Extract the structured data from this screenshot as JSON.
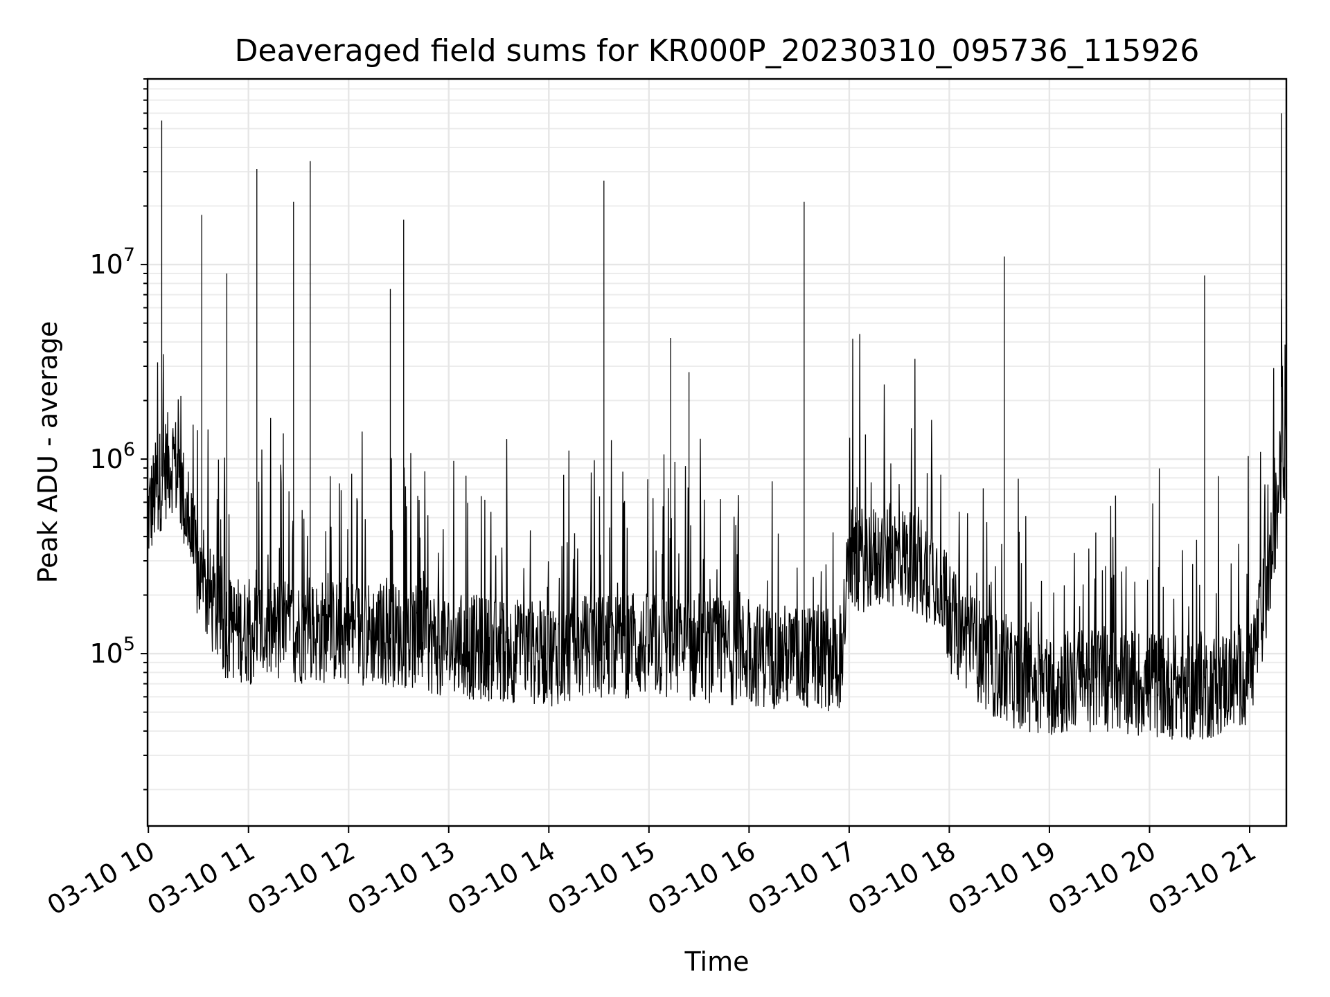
{
  "chart_data": {
    "type": "line",
    "title": "Deaveraged field sums for KR000P_20230310_095736_115926",
    "xlabel": "Time",
    "ylabel": "Peak ADU - average",
    "yscale": "log",
    "ylim": [
      13000,
      90000000
    ],
    "xlim": [
      "2023-03-10 09:59:30",
      "2023-03-10 21:22:00"
    ],
    "grid": "on (major and minor)",
    "x_ticks": [
      "03-10 10",
      "03-10 11",
      "03-10 12",
      "03-10 13",
      "03-10 14",
      "03-10 15",
      "03-10 16",
      "03-10 17",
      "03-10 18",
      "03-10 19",
      "03-10 20",
      "03-10 21"
    ],
    "y_ticks": [
      {
        "value": 100000,
        "base": "10",
        "exp": "5"
      },
      {
        "value": 1000000,
        "base": "10",
        "exp": "6"
      },
      {
        "value": 10000000,
        "base": "10",
        "exp": "7"
      }
    ],
    "series": [
      {
        "color": "#000000",
        "x": [
          "2023-03-10 09:59:30",
          "2023-03-10 10:05:00",
          "2023-03-10 10:10:00",
          "2023-03-10 10:15:00",
          "2023-03-10 10:20:00",
          "2023-03-10 10:30:00",
          "2023-03-10 10:45:00",
          "2023-03-10 11:00:00",
          "2023-03-10 11:30:00",
          "2023-03-10 12:00:00",
          "2023-03-10 12:30:00",
          "2023-03-10 13:00:00",
          "2023-03-10 13:30:00",
          "2023-03-10 14:00:00",
          "2023-03-10 14:30:00",
          "2023-03-10 15:00:00",
          "2023-03-10 15:30:00",
          "2023-03-10 16:00:00",
          "2023-03-10 16:30:00",
          "2023-03-10 16:55:00",
          "2023-03-10 17:00:00",
          "2023-03-10 17:30:00",
          "2023-03-10 17:55:00",
          "2023-03-10 18:00:00",
          "2023-03-10 18:30:00",
          "2023-03-10 19:00:00",
          "2023-03-10 19:30:00",
          "2023-03-10 20:00:00",
          "2023-03-10 20:30:00",
          "2023-03-10 21:00:00",
          "2023-03-10 21:10:00",
          "2023-03-10 21:16:00",
          "2023-03-10 21:20:00",
          "2023-03-10 21:22:00"
        ],
        "y": [
          500000,
          700000,
          900000,
          1000000,
          700000,
          250000,
          140000,
          130000,
          130000,
          130000,
          125000,
          110000,
          105000,
          100000,
          110000,
          110000,
          105000,
          100000,
          95000,
          95000,
          300000,
          320000,
          250000,
          150000,
          80000,
          70000,
          75000,
          70000,
          65000,
          80000,
          200000,
          500000,
          1200000,
          1000000
        ]
      }
    ],
    "spikes": [
      {
        "x": "2023-03-10 10:08:00",
        "y": 55000000
      },
      {
        "x": "2023-03-10 10:32:00",
        "y": 18000000
      },
      {
        "x": "2023-03-10 10:47:00",
        "y": 9000000
      },
      {
        "x": "2023-03-10 11:05:00",
        "y": 31000000
      },
      {
        "x": "2023-03-10 11:27:00",
        "y": 21000000
      },
      {
        "x": "2023-03-10 11:37:00",
        "y": 34000000
      },
      {
        "x": "2023-03-10 12:25:00",
        "y": 7500000
      },
      {
        "x": "2023-03-10 12:33:00",
        "y": 17000000
      },
      {
        "x": "2023-03-10 14:33:00",
        "y": 27000000
      },
      {
        "x": "2023-03-10 15:13:00",
        "y": 4200000
      },
      {
        "x": "2023-03-10 15:24:00",
        "y": 2800000
      },
      {
        "x": "2023-03-10 16:33:00",
        "y": 21000000
      },
      {
        "x": "2023-03-10 18:33:00",
        "y": 11000000
      },
      {
        "x": "2023-03-10 20:33:00",
        "y": 8800000
      },
      {
        "x": "2023-03-10 21:19:00",
        "y": 60000000
      }
    ]
  }
}
